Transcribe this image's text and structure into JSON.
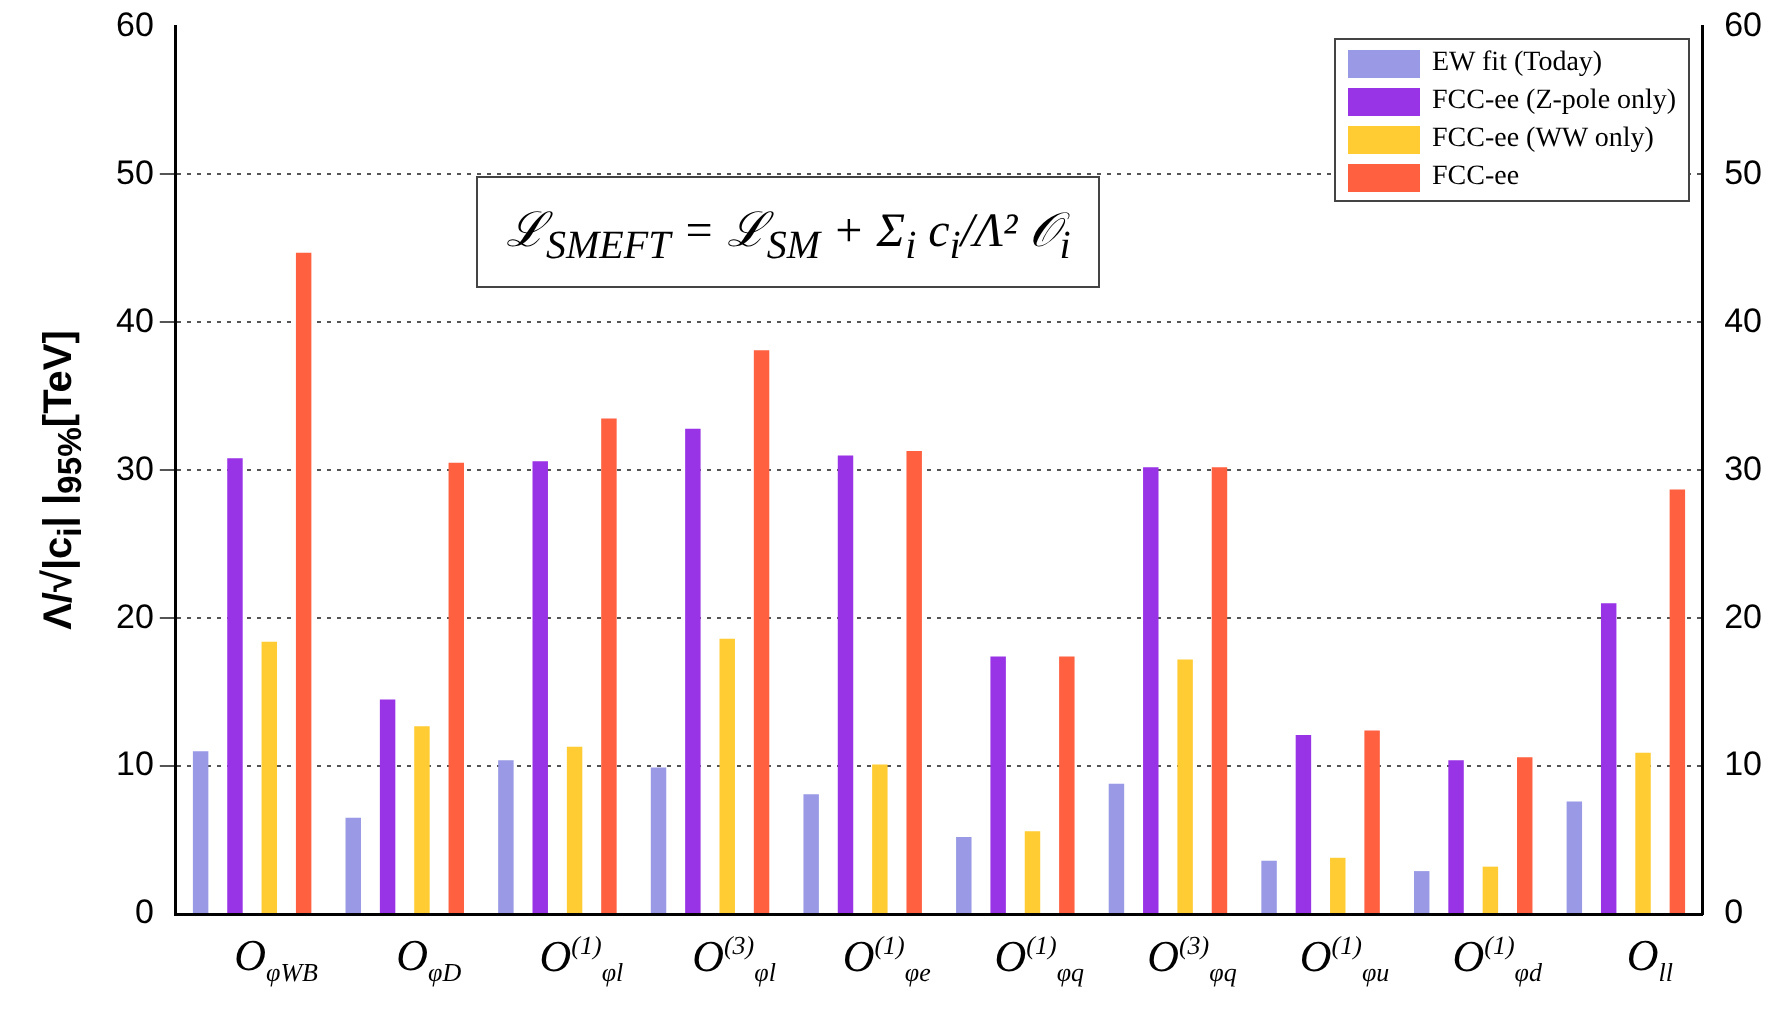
{
  "chart_data": {
    "type": "bar",
    "categories": [
      "O$_{φWB}$",
      "O$_{φD}$",
      "O$^{(1)}$$_{φl}$",
      "O$^{(3)}$$_{φl}$",
      "O$^{(1)}$$_{φe}$",
      "O$^{(1)}$$_{φq}$",
      "O$^{(3)}$$_{φq}$",
      "O$^{(1)}$$_{φu}$",
      "O$^{(1)}$$_{φd}$",
      "O$_{ll}$"
    ],
    "series": [
      {
        "name": "EW fit (Today)",
        "color": "#9999e6",
        "values": [
          11.0,
          6.5,
          10.4,
          9.9,
          8.1,
          5.2,
          8.8,
          3.6,
          2.9,
          7.6
        ]
      },
      {
        "name": "FCC-ee (Z-pole only)",
        "color": "#9933e6",
        "values": [
          30.8,
          14.5,
          30.6,
          32.8,
          31.0,
          17.4,
          30.2,
          12.1,
          10.4,
          21.0
        ]
      },
      {
        "name": "FCC-ee (WW only)",
        "color": "#ffcc33",
        "values": [
          18.4,
          12.7,
          11.3,
          18.6,
          10.1,
          5.6,
          17.2,
          3.8,
          3.2,
          10.9
        ]
      },
      {
        "name": "FCC-ee",
        "color": "#ff6040",
        "values": [
          44.7,
          30.5,
          33.5,
          38.1,
          31.3,
          17.4,
          30.2,
          12.4,
          10.6,
          28.7
        ]
      }
    ],
    "ylabel": "Λ/√|c$_{i}$| |$_{95%}$[TeV]",
    "ylim": [
      0,
      60
    ],
    "yticks": [
      0,
      10,
      20,
      30,
      40,
      50,
      60
    ],
    "y2lim": [
      0,
      60
    ],
    "y2ticks": [
      0,
      10,
      20,
      30,
      40,
      50,
      60
    ],
    "annotations": [
      "ℒ$_{SMEFT}$ = ℒ$_{SM}$ + Σ$_{i}$ c$_{i}$/Λ² 𝒪$_{i}$"
    ],
    "grid": "y",
    "legend": "top right"
  }
}
